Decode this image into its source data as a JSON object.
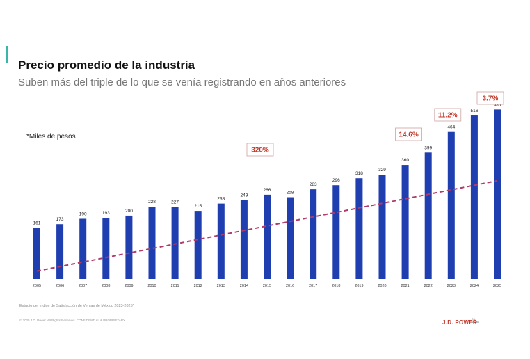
{
  "header": {
    "title": "Precio promedio de la industria",
    "subtitle": "Suben más del triple de lo que se venía registrando en años anteriores"
  },
  "chart_data": {
    "type": "bar",
    "unit_label": "*Miles de pesos",
    "categories": [
      "2005",
      "2006",
      "2007",
      "2008",
      "2009",
      "2010",
      "2011",
      "2012",
      "2013",
      "2014",
      "2015",
      "2016",
      "2017",
      "2018",
      "2019",
      "2020",
      "2021",
      "2022",
      "2023",
      "2024",
      "2025"
    ],
    "values": [
      161,
      173,
      190,
      193,
      200,
      228,
      227,
      215,
      238,
      249,
      266,
      258,
      283,
      296,
      318,
      329,
      360,
      399,
      464,
      516,
      535
    ],
    "ylim": [
      0,
      560
    ],
    "bar_color": "#1f3eb0",
    "trendline": {
      "style": "dashed",
      "color": "#b03a6a",
      "start_value": 25,
      "end_value": 310
    },
    "annotations": [
      {
        "label": "320%",
        "near_category": "2015"
      },
      {
        "label": "14.6%",
        "near_category": "2021"
      },
      {
        "label": "11.2%",
        "near_category": "2023"
      },
      {
        "label": "3.7%",
        "near_category": "2025"
      }
    ],
    "annotation_color": "#c0392b"
  },
  "footer": {
    "source": "Estudio del Índice de Satisfacción de Ventas de México 2023-2025*",
    "copyright": "© 2025 J.D. Power. All Rights Reserved. CONFIDENTIAL & PROPRIETARY",
    "brand": "J.D. POWER",
    "brand_sub": "Est. Mexico"
  }
}
